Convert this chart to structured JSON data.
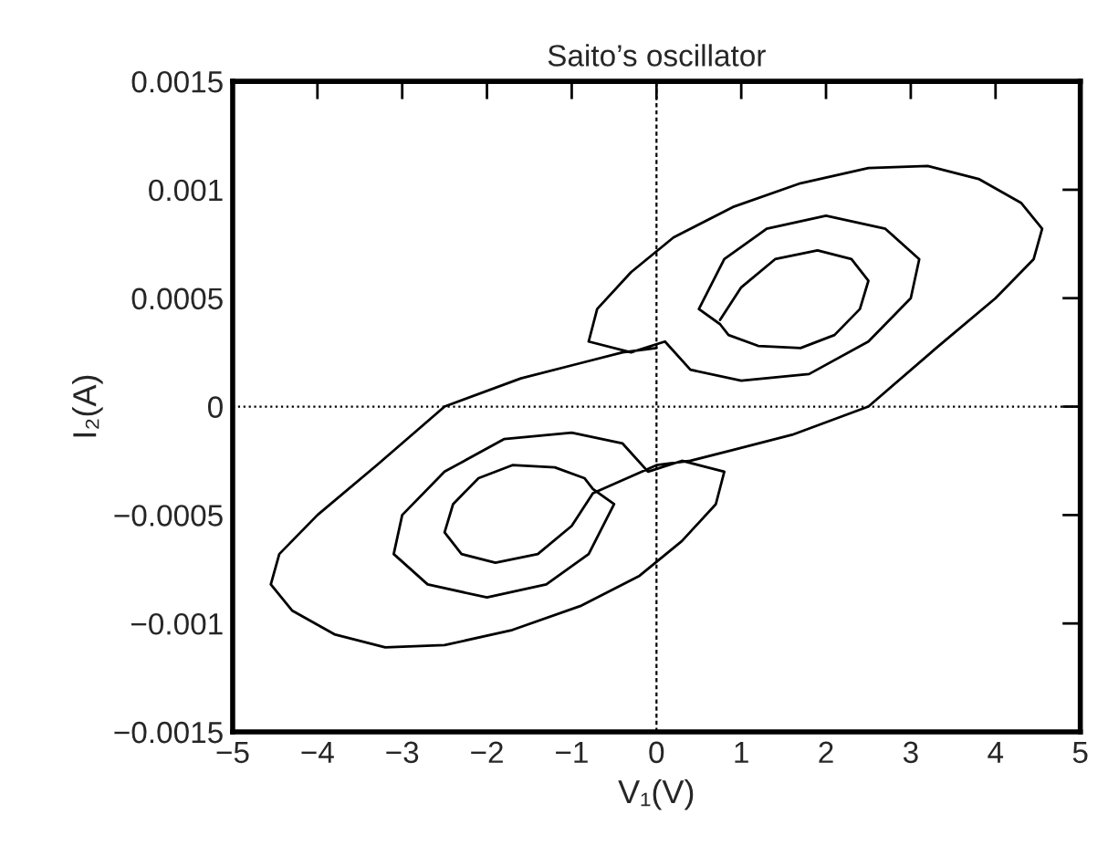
{
  "chart_data": {
    "type": "line",
    "title": "Saito’s oscillator",
    "xlabel": "V₁(V)",
    "ylabel": "I₂(A)",
    "xlim": [
      -5,
      5
    ],
    "ylim": [
      -0.0015,
      0.0015
    ],
    "xticks": [
      {
        "value": -5,
        "label": "−5"
      },
      {
        "value": -4,
        "label": "−4"
      },
      {
        "value": -3,
        "label": "−3"
      },
      {
        "value": -2,
        "label": "−2"
      },
      {
        "value": -1,
        "label": "−1"
      },
      0,
      1,
      2,
      3,
      4,
      5
    ],
    "yticks": [
      {
        "value": -0.0015,
        "label": "−0.0015"
      },
      {
        "value": -0.001,
        "label": "−0.001"
      },
      {
        "value": -0.0005,
        "label": "−0.0005"
      },
      0,
      0.0005,
      0.001,
      0.0015
    ],
    "grid": false,
    "legend": false,
    "line_style": "solid",
    "marker": "none",
    "ref_lines": [
      {
        "axis": "x",
        "value": 0,
        "color": "#000000",
        "line_style": "dashed"
      },
      {
        "axis": "y",
        "value": 0,
        "color": "#000000",
        "line_style": "dotted"
      }
    ],
    "series": [
      {
        "color": "#000000",
        "x": [
          0.75,
          1.0,
          1.4,
          1.9,
          2.3,
          2.5,
          2.4,
          2.1,
          1.7,
          1.2,
          0.85,
          0.75,
          0.5,
          0.8,
          1.3,
          2.0,
          2.7,
          3.1,
          3.0,
          2.5,
          1.8,
          1.0,
          0.4,
          0.1,
          -0.3,
          -0.8,
          -0.7,
          -0.3,
          0.2,
          0.9,
          1.7,
          2.5,
          3.2,
          3.8,
          4.3,
          4.55,
          4.45,
          4.0,
          3.3,
          2.5,
          1.6,
          0.9,
          0.4,
          0.0,
          -0.75,
          -1.0,
          -1.4,
          -1.9,
          -2.3,
          -2.5,
          -2.4,
          -2.1,
          -1.7,
          -1.2,
          -0.85,
          -0.75,
          -0.5,
          -0.8,
          -1.3,
          -2.0,
          -2.7,
          -3.1,
          -3.0,
          -2.5,
          -1.8,
          -1.0,
          -0.4,
          -0.1,
          0.3,
          0.8,
          0.7,
          0.3,
          -0.2,
          -0.9,
          -1.7,
          -2.5,
          -3.2,
          -3.8,
          -4.3,
          -4.55,
          -4.45,
          -4.0,
          -3.3,
          -2.5,
          -1.6,
          -0.9,
          -0.4,
          0.0
        ],
        "values": [
          0.0004,
          0.00055,
          0.00068,
          0.00072,
          0.00068,
          0.00058,
          0.00045,
          0.00033,
          0.00027,
          0.00028,
          0.00033,
          0.00038,
          0.00045,
          0.00068,
          0.00082,
          0.00088,
          0.00082,
          0.00068,
          0.0005,
          0.0003,
          0.00015,
          0.00012,
          0.00017,
          0.0003,
          0.00025,
          0.0003,
          0.00045,
          0.00062,
          0.00078,
          0.00092,
          0.00103,
          0.0011,
          0.00111,
          0.00105,
          0.00094,
          0.00082,
          0.00068,
          0.0005,
          0.00027,
          0.0,
          -0.00013,
          -0.0002,
          -0.00025,
          -0.00027,
          -0.0004,
          -0.00055,
          -0.00068,
          -0.00072,
          -0.00068,
          -0.00058,
          -0.00045,
          -0.00033,
          -0.00027,
          -0.00028,
          -0.00033,
          -0.00038,
          -0.00045,
          -0.00068,
          -0.00082,
          -0.00088,
          -0.00082,
          -0.00068,
          -0.0005,
          -0.0003,
          -0.00015,
          -0.00012,
          -0.00017,
          -0.0003,
          -0.00025,
          -0.0003,
          -0.00045,
          -0.00062,
          -0.00078,
          -0.00092,
          -0.00103,
          -0.0011,
          -0.00111,
          -0.00105,
          -0.00094,
          -0.00082,
          -0.00068,
          -0.0005,
          -0.00027,
          0.0,
          0.00013,
          0.0002,
          0.00025,
          0.00027
        ]
      }
    ]
  }
}
